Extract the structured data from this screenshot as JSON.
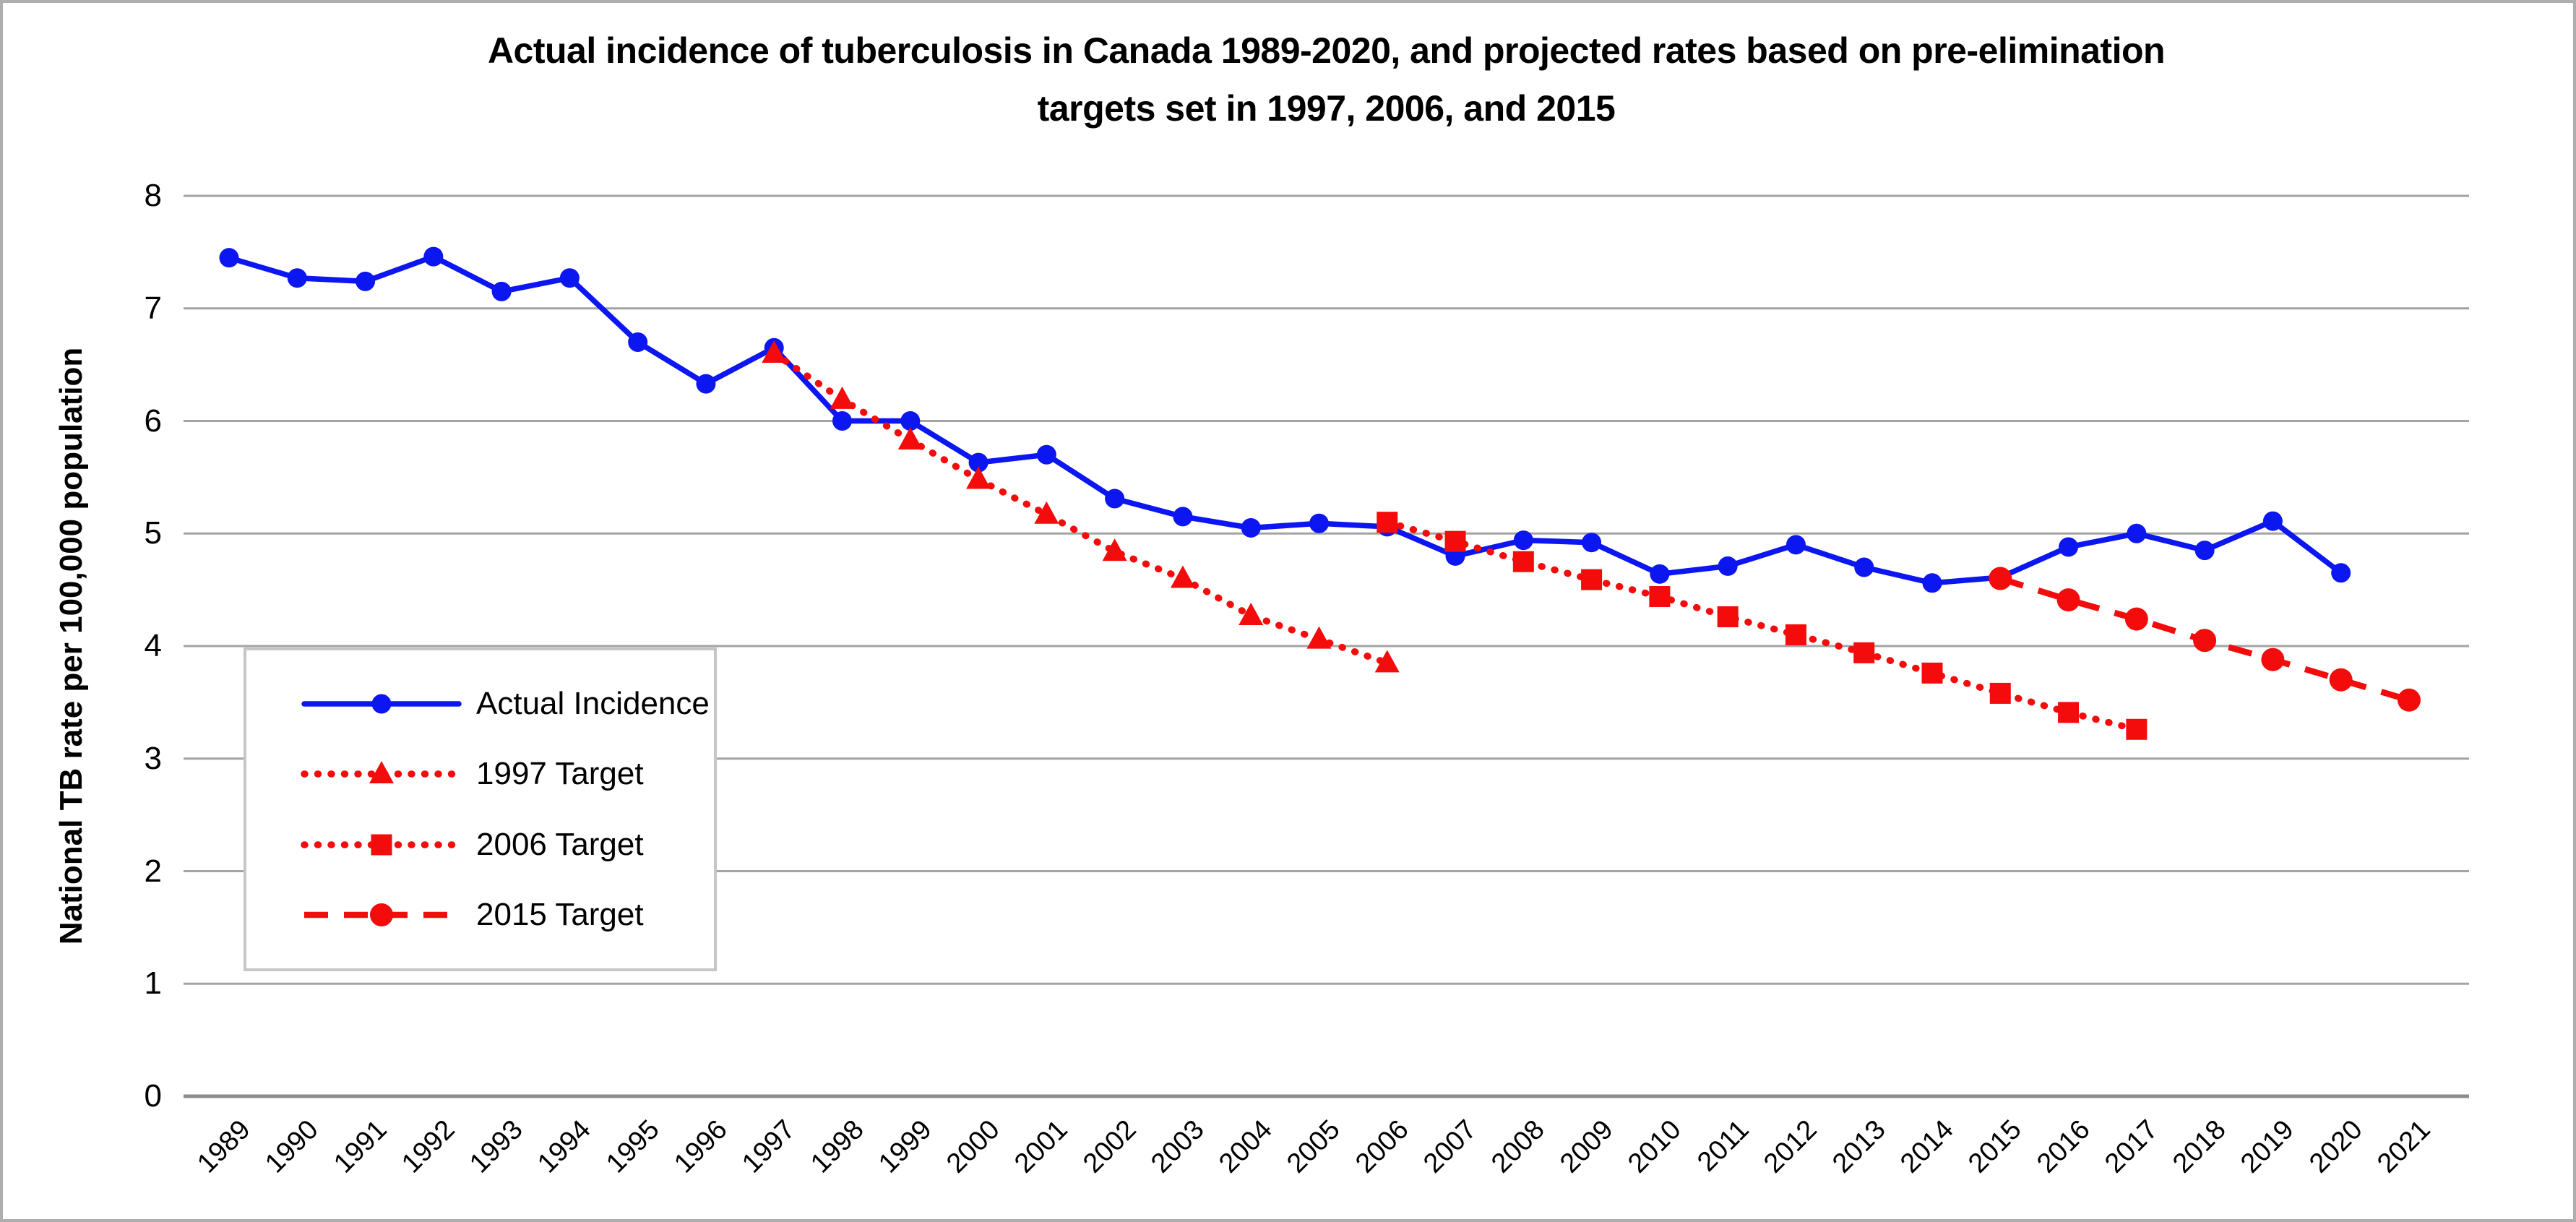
{
  "title": {
    "line1": "Actual incidence of tuberculosis in Canada 1989-2020, and projected rates based on pre-elimination",
    "line2": "targets set in 1997, 2006, and 2015"
  },
  "y_axis": {
    "title": "National TB rate per 100,000 population",
    "ticks": [
      0,
      1,
      2,
      3,
      4,
      5,
      6,
      7,
      8
    ],
    "min": 0,
    "max": 8
  },
  "x_axis": {
    "categories": [
      "1989",
      "1990",
      "1991",
      "1992",
      "1993",
      "1994",
      "1995",
      "1996",
      "1997",
      "1998",
      "1999",
      "2000",
      "2001",
      "2002",
      "2003",
      "2004",
      "2005",
      "2006",
      "2007",
      "2008",
      "2009",
      "2010",
      "2011",
      "2012",
      "2013",
      "2014",
      "2015",
      "2016",
      "2017",
      "2018",
      "2019",
      "2020",
      "2021"
    ]
  },
  "chart_data": {
    "type": "line",
    "title": "Actual incidence of tuberculosis in Canada 1989-2020, and projected rates based on pre-elimination targets set in 1997, 2006, and 2015",
    "xlabel": "",
    "ylabel": "National TB rate per 100,000 population",
    "ylim": [
      0,
      8
    ],
    "grid": "horizontal",
    "legend_position": "inside-left box",
    "categories": [
      1989,
      1990,
      1991,
      1992,
      1993,
      1994,
      1995,
      1996,
      1997,
      1998,
      1999,
      2000,
      2001,
      2002,
      2003,
      2004,
      2005,
      2006,
      2007,
      2008,
      2009,
      2010,
      2011,
      2012,
      2013,
      2014,
      2015,
      2016,
      2017,
      2018,
      2019,
      2020,
      2021
    ],
    "series": [
      {
        "name": "Actual Incidence",
        "color": "#0b16f0",
        "line_style": "solid",
        "marker": "circle",
        "years": [
          1989,
          1990,
          1991,
          1992,
          1993,
          1994,
          1995,
          1996,
          1997,
          1998,
          1999,
          2000,
          2001,
          2002,
          2003,
          2004,
          2005,
          2006,
          2007,
          2008,
          2009,
          2010,
          2011,
          2012,
          2013,
          2014,
          2015,
          2016,
          2017,
          2018,
          2019,
          2020
        ],
        "values": [
          7.45,
          7.27,
          7.24,
          7.46,
          7.15,
          7.27,
          6.7,
          6.33,
          6.65,
          6.0,
          6.0,
          5.63,
          5.7,
          5.31,
          5.15,
          5.05,
          5.09,
          5.06,
          4.8,
          4.94,
          4.92,
          4.64,
          4.71,
          4.9,
          4.7,
          4.56,
          4.61,
          4.88,
          5.0,
          4.85,
          5.11,
          4.65
        ]
      },
      {
        "name": "1997 Target",
        "color": "#f40b0b",
        "line_style": "dotted",
        "marker": "triangle",
        "years": [
          1997,
          1998,
          1999,
          2000,
          2001,
          2002,
          2003,
          2004,
          2005,
          2006
        ],
        "values": [
          6.6,
          6.19,
          5.83,
          5.48,
          5.17,
          4.84,
          4.6,
          4.27,
          4.06,
          3.85
        ]
      },
      {
        "name": "2006 Target",
        "color": "#f40b0b",
        "line_style": "dotted",
        "marker": "square",
        "years": [
          2006,
          2007,
          2008,
          2009,
          2010,
          2011,
          2012,
          2013,
          2014,
          2015,
          2016,
          2017
        ],
        "values": [
          5.1,
          4.93,
          4.75,
          4.59,
          4.44,
          4.26,
          4.1,
          3.94,
          3.76,
          3.58,
          3.41,
          3.26
        ]
      },
      {
        "name": "2015 Target",
        "color": "#f40b0b",
        "line_style": "dashed",
        "marker": "circle",
        "years": [
          2015,
          2016,
          2017,
          2018,
          2019,
          2020,
          2021
        ],
        "values": [
          4.6,
          4.41,
          4.24,
          4.05,
          3.88,
          3.7,
          3.52
        ]
      }
    ],
    "colors": {
      "gridline": "#a3a3a3",
      "axis_line": "#8c8c8c",
      "legend_border": "#c6c6c6",
      "text": "#000000"
    }
  }
}
